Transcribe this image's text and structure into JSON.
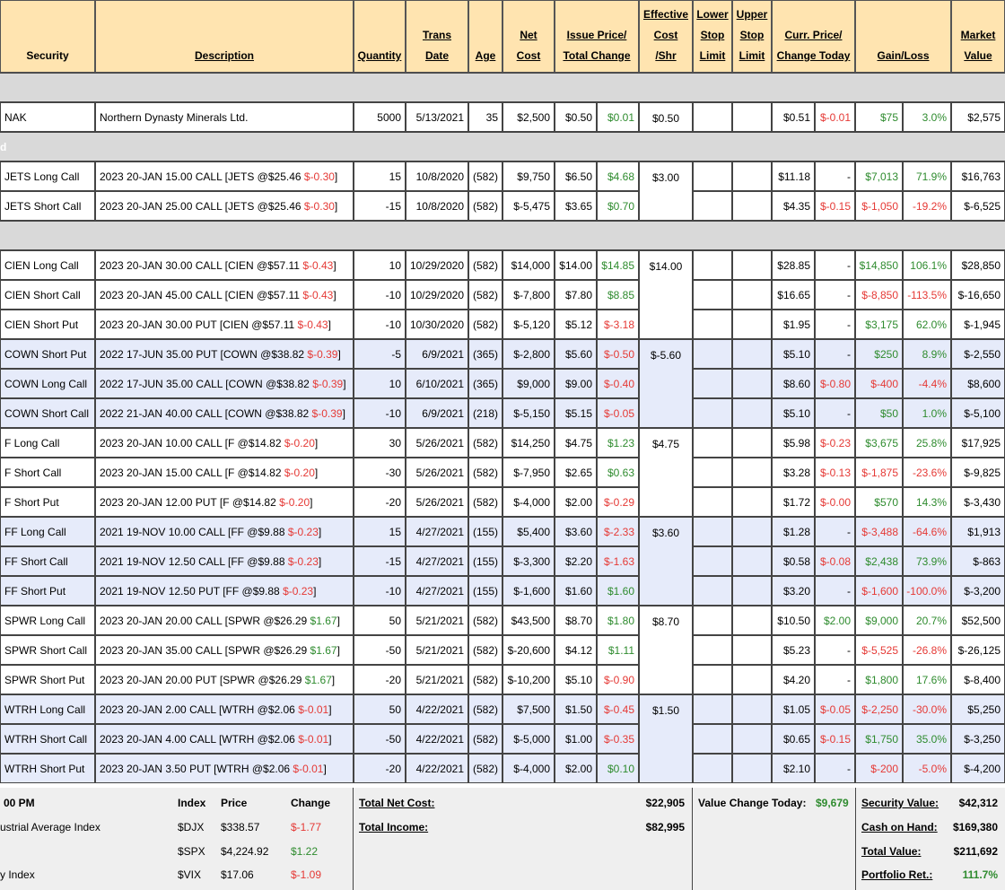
{
  "header": {
    "security": "Security",
    "description": "Description",
    "quantity": "Quantity",
    "trans_date": [
      "Trans",
      "Date"
    ],
    "age": "Age",
    "net_cost": [
      "Net",
      "Cost"
    ],
    "issue_price": [
      "Issue Price/",
      "Total Change"
    ],
    "eff_cost": [
      "Effective",
      "Cost",
      "/Shr"
    ],
    "lower_stop": [
      "Lower",
      "Stop",
      "Limit"
    ],
    "upper_stop": [
      "Upper",
      "Stop",
      "Limit"
    ],
    "curr_price": [
      "Curr. Price/",
      "Change Today"
    ],
    "gain_loss": "Gain/Loss",
    "market_value": [
      "Market",
      "Value"
    ]
  },
  "sections": [
    {
      "label": ""
    },
    {
      "label": "d"
    },
    {
      "label": ""
    }
  ],
  "rows": [
    {
      "sec": "NAK",
      "desc": "Northern Dynasty Minerals Ltd.",
      "tick": "",
      "und": "",
      "chg": "",
      "chg_c": "neg",
      "qty": "5000",
      "date": "5/13/2021",
      "age": "35",
      "net": "$2,500",
      "issue": "$0.50",
      "tot": "$0.01",
      "tot_c": "pos",
      "eff": "$0.50",
      "curr": "$0.51",
      "today": "$-0.01",
      "today_c": "neg",
      "gain": "$75",
      "gain_c": "pos",
      "pct": "3.0%",
      "pct_c": "pos",
      "mv": "$2,575"
    },
    {
      "sec": "JETS Long Call",
      "desc": "2023 20-JAN 15.00 CALL [JETS @ ",
      "und": "$25.46",
      "chg": "$-0.30",
      "chg_c": "neg",
      "qty": "15",
      "date": "10/8/2020",
      "age": "(582)",
      "net": "$9,750",
      "issue": "$6.50",
      "tot": "$4.68",
      "tot_c": "pos",
      "eff": "$3.00",
      "curr": "$11.18",
      "today": "-",
      "today_c": "blk",
      "gain": "$7,013",
      "gain_c": "pos",
      "pct": "71.9%",
      "pct_c": "pos",
      "mv": "$16,763"
    },
    {
      "sec": "JETS Short Call",
      "desc": "2023 20-JAN 25.00 CALL [JETS @ ",
      "und": "$25.46",
      "chg": "$-0.30",
      "chg_c": "neg",
      "qty": "-15",
      "date": "10/8/2020",
      "age": "(582)",
      "net": "$-5,475",
      "issue": "$3.65",
      "tot": "$0.70",
      "tot_c": "pos",
      "eff": "",
      "curr": "$4.35",
      "today": "$-0.15",
      "today_c": "neg",
      "gain": "$-1,050",
      "gain_c": "neg",
      "pct": "-19.2%",
      "pct_c": "neg",
      "mv": "$-6,525"
    },
    {
      "sec": "CIEN Long Call",
      "desc": "2023 20-JAN 30.00 CALL [CIEN @ ",
      "und": "$57.11",
      "chg": "$-0.43",
      "chg_c": "neg",
      "qty": "10",
      "date": "10/29/2020",
      "age": "(582)",
      "net": "$14,000",
      "issue": "$14.00",
      "tot": "$14.85",
      "tot_c": "pos",
      "eff": "$14.00",
      "curr": "$28.85",
      "today": "-",
      "today_c": "blk",
      "gain": "$14,850",
      "gain_c": "pos",
      "pct": "106.1%",
      "pct_c": "pos",
      "mv": "$28,850"
    },
    {
      "sec": "CIEN Short Call",
      "desc": "2023 20-JAN 45.00 CALL [CIEN @ ",
      "und": "$57.11",
      "chg": "$-0.43",
      "chg_c": "neg",
      "qty": "-10",
      "date": "10/29/2020",
      "age": "(582)",
      "net": "$-7,800",
      "issue": "$7.80",
      "tot": "$8.85",
      "tot_c": "pos",
      "eff": "",
      "curr": "$16.65",
      "today": "-",
      "today_c": "blk",
      "gain": "$-8,850",
      "gain_c": "neg",
      "pct": "-113.5%",
      "pct_c": "neg",
      "mv": "$-16,650"
    },
    {
      "sec": "CIEN Short Put",
      "desc": "2023 20-JAN 30.00 PUT [CIEN @ ",
      "und": "$57.11",
      "chg": "$-0.43",
      "chg_c": "neg",
      "qty": "-10",
      "date": "10/30/2020",
      "age": "(582)",
      "net": "$-5,120",
      "issue": "$5.12",
      "tot": "$-3.18",
      "tot_c": "neg",
      "eff": "",
      "curr": "$1.95",
      "today": "-",
      "today_c": "blk",
      "gain": "$3,175",
      "gain_c": "pos",
      "pct": "62.0%",
      "pct_c": "pos",
      "mv": "$-1,945"
    },
    {
      "sec": "COWN Short Put",
      "desc": "2022 17-JUN 35.00 PUT [COWN @ ",
      "und": "$38.82",
      "chg": "$-0.39",
      "chg_c": "neg",
      "qty": "-5",
      "date": "6/9/2021",
      "age": "(365)",
      "net": "$-2,800",
      "issue": "$5.60",
      "tot": "$-0.50",
      "tot_c": "neg",
      "eff": "$-5.60",
      "curr": "$5.10",
      "today": "-",
      "today_c": "blk",
      "gain": "$250",
      "gain_c": "pos",
      "pct": "8.9%",
      "pct_c": "pos",
      "mv": "$-2,550"
    },
    {
      "sec": "COWN Long Call",
      "desc": "2022 17-JUN 35.00 CALL [COWN @ ",
      "und": "$38.82",
      "chg": "$-0.39",
      "chg_c": "neg",
      "qty": "10",
      "date": "6/10/2021",
      "age": "(365)",
      "net": "$9,000",
      "issue": "$9.00",
      "tot": "$-0.40",
      "tot_c": "neg",
      "eff": "",
      "curr": "$8.60",
      "today": "$-0.80",
      "today_c": "neg",
      "gain": "$-400",
      "gain_c": "neg",
      "pct": "-4.4%",
      "pct_c": "neg",
      "mv": "$8,600"
    },
    {
      "sec": "COWN Short Call",
      "desc": "2022 21-JAN 40.00 CALL [COWN @ ",
      "und": "$38.82",
      "chg": "$-0.39",
      "chg_c": "neg",
      "qty": "-10",
      "date": "6/9/2021",
      "age": "(218)",
      "net": "$-5,150",
      "issue": "$5.15",
      "tot": "$-0.05",
      "tot_c": "neg",
      "eff": "",
      "curr": "$5.10",
      "today": "-",
      "today_c": "blk",
      "gain": "$50",
      "gain_c": "pos",
      "pct": "1.0%",
      "pct_c": "pos",
      "mv": "$-5,100"
    },
    {
      "sec": "F Long Call",
      "desc": "2023 20-JAN 10.00 CALL [F @ ",
      "und": "$14.82",
      "chg": "$-0.20",
      "chg_c": "neg",
      "qty": "30",
      "date": "5/26/2021",
      "age": "(582)",
      "net": "$14,250",
      "issue": "$4.75",
      "tot": "$1.23",
      "tot_c": "pos",
      "eff": "$4.75",
      "curr": "$5.98",
      "today": "$-0.23",
      "today_c": "neg",
      "gain": "$3,675",
      "gain_c": "pos",
      "pct": "25.8%",
      "pct_c": "pos",
      "mv": "$17,925"
    },
    {
      "sec": "F Short Call",
      "desc": "2023 20-JAN 15.00 CALL [F @ ",
      "und": "$14.82",
      "chg": "$-0.20",
      "chg_c": "neg",
      "qty": "-30",
      "date": "5/26/2021",
      "age": "(582)",
      "net": "$-7,950",
      "issue": "$2.65",
      "tot": "$0.63",
      "tot_c": "pos",
      "eff": "",
      "curr": "$3.28",
      "today": "$-0.13",
      "today_c": "neg",
      "gain": "$-1,875",
      "gain_c": "neg",
      "pct": "-23.6%",
      "pct_c": "neg",
      "mv": "$-9,825"
    },
    {
      "sec": "F Short Put",
      "desc": "2023 20-JAN 12.00 PUT [F @ ",
      "und": "$14.82",
      "chg": "$-0.20",
      "chg_c": "neg",
      "qty": "-20",
      "date": "5/26/2021",
      "age": "(582)",
      "net": "$-4,000",
      "issue": "$2.00",
      "tot": "$-0.29",
      "tot_c": "neg",
      "eff": "",
      "curr": "$1.72",
      "today": "$-0.00",
      "today_c": "neg",
      "gain": "$570",
      "gain_c": "pos",
      "pct": "14.3%",
      "pct_c": "pos",
      "mv": "$-3,430"
    },
    {
      "sec": "FF Long Call",
      "desc": "2021 19-NOV 10.00 CALL [FF @ ",
      "und": "$9.88",
      "chg": "$-0.23",
      "chg_c": "neg",
      "qty": "15",
      "date": "4/27/2021",
      "age": "(155)",
      "net": "$5,400",
      "issue": "$3.60",
      "tot": "$-2.33",
      "tot_c": "neg",
      "eff": "$3.60",
      "curr": "$1.28",
      "today": "-",
      "today_c": "blk",
      "gain": "$-3,488",
      "gain_c": "neg",
      "pct": "-64.6%",
      "pct_c": "neg",
      "mv": "$1,913"
    },
    {
      "sec": "FF Short Call",
      "desc": "2021 19-NOV 12.50 CALL [FF @ ",
      "und": "$9.88",
      "chg": "$-0.23",
      "chg_c": "neg",
      "qty": "-15",
      "date": "4/27/2021",
      "age": "(155)",
      "net": "$-3,300",
      "issue": "$2.20",
      "tot": "$-1.63",
      "tot_c": "neg",
      "eff": "",
      "curr": "$0.58",
      "today": "$-0.08",
      "today_c": "neg",
      "gain": "$2,438",
      "gain_c": "pos",
      "pct": "73.9%",
      "pct_c": "pos",
      "mv": "$-863"
    },
    {
      "sec": "FF Short Put",
      "desc": "2021 19-NOV 12.50 PUT [FF @ ",
      "und": "$9.88",
      "chg": "$-0.23",
      "chg_c": "neg",
      "qty": "-10",
      "date": "4/27/2021",
      "age": "(155)",
      "net": "$-1,600",
      "issue": "$1.60",
      "tot": "$1.60",
      "tot_c": "pos",
      "eff": "",
      "curr": "$3.20",
      "today": "-",
      "today_c": "blk",
      "gain": "$-1,600",
      "gain_c": "neg",
      "pct": "-100.0%",
      "pct_c": "neg",
      "mv": "$-3,200"
    },
    {
      "sec": "SPWR Long Call",
      "desc": "2023 20-JAN 20.00 CALL [SPWR @ ",
      "und": "$26.29",
      "chg": "$1.67",
      "chg_c": "pos",
      "qty": "50",
      "date": "5/21/2021",
      "age": "(582)",
      "net": "$43,500",
      "issue": "$8.70",
      "tot": "$1.80",
      "tot_c": "pos",
      "eff": "$8.70",
      "curr": "$10.50",
      "today": "$2.00",
      "today_c": "pos",
      "gain": "$9,000",
      "gain_c": "pos",
      "pct": "20.7%",
      "pct_c": "pos",
      "mv": "$52,500"
    },
    {
      "sec": "SPWR Short Call",
      "desc": "2023 20-JAN 35.00 CALL [SPWR @ ",
      "und": "$26.29",
      "chg": "$1.67",
      "chg_c": "pos",
      "qty": "-50",
      "date": "5/21/2021",
      "age": "(582)",
      "net": "$-20,600",
      "issue": "$4.12",
      "tot": "$1.11",
      "tot_c": "pos",
      "eff": "",
      "curr": "$5.23",
      "today": "-",
      "today_c": "blk",
      "gain": "$-5,525",
      "gain_c": "neg",
      "pct": "-26.8%",
      "pct_c": "neg",
      "mv": "$-26,125"
    },
    {
      "sec": "SPWR Short Put",
      "desc": "2023 20-JAN 20.00 PUT [SPWR @ ",
      "und": "$26.29",
      "chg": "$1.67",
      "chg_c": "pos",
      "qty": "-20",
      "date": "5/21/2021",
      "age": "(582)",
      "net": "$-10,200",
      "issue": "$5.10",
      "tot": "$-0.90",
      "tot_c": "neg",
      "eff": "",
      "curr": "$4.20",
      "today": "-",
      "today_c": "blk",
      "gain": "$1,800",
      "gain_c": "pos",
      "pct": "17.6%",
      "pct_c": "pos",
      "mv": "$-8,400"
    },
    {
      "sec": "WTRH Long Call",
      "desc": "2023 20-JAN 2.00 CALL [WTRH @ ",
      "und": "$2.06",
      "chg": "$-0.01",
      "chg_c": "neg",
      "qty": "50",
      "date": "4/22/2021",
      "age": "(582)",
      "net": "$7,500",
      "issue": "$1.50",
      "tot": "$-0.45",
      "tot_c": "neg",
      "eff": "$1.50",
      "curr": "$1.05",
      "today": "$-0.05",
      "today_c": "neg",
      "gain": "$-2,250",
      "gain_c": "neg",
      "pct": "-30.0%",
      "pct_c": "neg",
      "mv": "$5,250"
    },
    {
      "sec": "WTRH Short Call",
      "desc": "2023 20-JAN 4.00 CALL [WTRH @ ",
      "und": "$2.06",
      "chg": "$-0.01",
      "chg_c": "neg",
      "qty": "-50",
      "date": "4/22/2021",
      "age": "(582)",
      "net": "$-5,000",
      "issue": "$1.00",
      "tot": "$-0.35",
      "tot_c": "neg",
      "eff": "",
      "curr": "$0.65",
      "today": "$-0.15",
      "today_c": "neg",
      "gain": "$1,750",
      "gain_c": "pos",
      "pct": "35.0%",
      "pct_c": "pos",
      "mv": "$-3,250"
    },
    {
      "sec": "WTRH Short Put",
      "desc": "2023 20-JAN 3.50 PUT [WTRH @ ",
      "und": "$2.06",
      "chg": "$-0.01",
      "chg_c": "neg",
      "qty": "-20",
      "date": "4/22/2021",
      "age": "(582)",
      "net": "$-4,000",
      "issue": "$2.00",
      "tot": "$0.10",
      "tot_c": "pos",
      "eff": "",
      "curr": "$2.10",
      "today": "-",
      "today_c": "blk",
      "gain": "$-200",
      "gain_c": "neg",
      "pct": "-5.0%",
      "pct_c": "neg",
      "mv": "$-4,200"
    }
  ],
  "colors": {
    "header_bg": "#ffe4b0",
    "section_bg": "#d9d9d9",
    "alt_row_bg": "#e6ebfa",
    "white_row_bg": "#ffffff",
    "positive": "#2e8b2e",
    "negative": "#e53935",
    "footer_bg": "#efefef"
  },
  "footer": {
    "time": "00 PM",
    "col_index": "Index",
    "col_price": "Price",
    "col_change": "Change",
    "indices": [
      {
        "name": "ustrial Average Index",
        "symbol": "$DJX",
        "price": "$338.57",
        "change": "$-1.77",
        "change_c": "neg"
      },
      {
        "name": "",
        "symbol": "$SPX",
        "price": "$4,224.92",
        "change": "$1.22",
        "change_c": "pos"
      },
      {
        "name": "y Index",
        "symbol": "$VIX",
        "price": "$17.06",
        "change": "$-1.09",
        "change_c": "neg"
      }
    ],
    "total_net_cost_label": "Total Net Cost:",
    "total_net_cost": "$22,905",
    "total_income_label": "Total Income:",
    "total_income": "$82,995",
    "value_change_label": "Value Change Today:",
    "value_change": "$9,679",
    "security_value_label": "Security Value:",
    "security_value": "$42,312",
    "cash_label": "Cash on Hand:",
    "cash": "$169,380",
    "total_value_label": "Total Value:",
    "total_value": "$211,692",
    "portfolio_ret_label": "Portfolio Ret.:",
    "portfolio_ret": "111.7%"
  }
}
